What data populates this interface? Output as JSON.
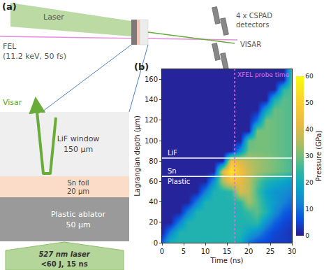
{
  "panel_a": {
    "label": "(a)",
    "laser": "Laser",
    "fel": "FEL",
    "fel_params": "(11.2 keV, 50 fs)",
    "detectors": [
      "4 x CSPAD",
      "detectors"
    ],
    "visar": "VISAR",
    "inset": {
      "visar": "Visar",
      "layers": [
        {
          "name": "LiF window",
          "thickness": "150 μm"
        },
        {
          "name": "Sn foil",
          "thickness": "20 μm"
        },
        {
          "name": "Plastic ablator",
          "thickness": "50 μm"
        }
      ],
      "drive": [
        "527 nm laser",
        "<60 J, 15 ns"
      ]
    }
  },
  "chart_data": {
    "type": "heatmap",
    "panel_label": "(b)",
    "xlabel": "Time (ns)",
    "ylabel": "Lagrangian depth (μm)",
    "x": [
      0,
      2,
      4,
      6,
      8,
      10,
      12,
      14,
      16,
      18,
      20,
      22,
      24,
      26,
      28,
      30
    ],
    "y": [
      0,
      10,
      20,
      30,
      40,
      50,
      60,
      70,
      80,
      90,
      100,
      110,
      120,
      130,
      140,
      150,
      160,
      170
    ],
    "z": [
      [
        8,
        22,
        22,
        22,
        22,
        22,
        22,
        22,
        22,
        20,
        10,
        6,
        5,
        4,
        4,
        3
      ],
      [
        1,
        12,
        22,
        22,
        22,
        22,
        22,
        22,
        22,
        22,
        18,
        14,
        8,
        5,
        4,
        3
      ],
      [
        1,
        1,
        12,
        22,
        22,
        22,
        22,
        22,
        22,
        22,
        22,
        24,
        14,
        8,
        5,
        4
      ],
      [
        1,
        1,
        1,
        12,
        22,
        22,
        22,
        22,
        22,
        22,
        25,
        28,
        22,
        14,
        8,
        6
      ],
      [
        1,
        1,
        1,
        1,
        12,
        22,
        22,
        22,
        22,
        24,
        34,
        28,
        20,
        16,
        12,
        9
      ],
      [
        1,
        1,
        1,
        1,
        1,
        12,
        22,
        22,
        24,
        40,
        36,
        26,
        18,
        15,
        14,
        12
      ],
      [
        1,
        1,
        1,
        1,
        1,
        1,
        14,
        35,
        45,
        42,
        36,
        28,
        22,
        20,
        18,
        16
      ],
      [
        1,
        1,
        1,
        1,
        1,
        1,
        1,
        40,
        55,
        45,
        38,
        34,
        32,
        30,
        28,
        26
      ],
      [
        1,
        1,
        1,
        1,
        1,
        1,
        1,
        1,
        45,
        40,
        36,
        34,
        32,
        30,
        28,
        26
      ],
      [
        1,
        1,
        1,
        1,
        1,
        1,
        1,
        1,
        1,
        15,
        30,
        30,
        30,
        29,
        28,
        27
      ],
      [
        1,
        1,
        1,
        1,
        1,
        1,
        1,
        1,
        1,
        1,
        28,
        30,
        30,
        29,
        28,
        27
      ],
      [
        1,
        1,
        1,
        1,
        1,
        1,
        1,
        1,
        1,
        1,
        1,
        30,
        30,
        29,
        28,
        27
      ],
      [
        1,
        1,
        1,
        1,
        1,
        1,
        1,
        1,
        1,
        1,
        1,
        10,
        30,
        29,
        28,
        27
      ],
      [
        1,
        1,
        1,
        1,
        1,
        1,
        1,
        1,
        1,
        1,
        1,
        1,
        18,
        29,
        28,
        27
      ],
      [
        1,
        1,
        1,
        1,
        1,
        1,
        1,
        1,
        1,
        1,
        1,
        1,
        1,
        22,
        28,
        27
      ],
      [
        1,
        1,
        1,
        1,
        1,
        1,
        1,
        1,
        1,
        1,
        1,
        1,
        1,
        1,
        24,
        27
      ],
      [
        1,
        1,
        1,
        1,
        1,
        1,
        1,
        1,
        1,
        1,
        1,
        1,
        1,
        1,
        1,
        27
      ],
      [
        1,
        1,
        1,
        1,
        1,
        1,
        1,
        1,
        1,
        1,
        1,
        1,
        1,
        1,
        1,
        24
      ]
    ],
    "xlim": [
      0,
      30
    ],
    "xticks": [
      0,
      5,
      10,
      15,
      20,
      25,
      30
    ],
    "ylim": [
      0,
      170
    ],
    "yticks": [
      0,
      20,
      40,
      60,
      80,
      100,
      120,
      140,
      160
    ],
    "colorbar": {
      "title": "Pressure (GPa)",
      "range": [
        0,
        60
      ],
      "ticks": [
        0,
        10,
        20,
        30,
        40,
        50,
        60
      ]
    },
    "layers": [
      {
        "name": "Plastic",
        "top": 65
      },
      {
        "name": "Sn",
        "top": 83
      },
      {
        "name": "LiF"
      }
    ],
    "probe": {
      "label": "XFEL probe time",
      "time": 16.8
    }
  }
}
